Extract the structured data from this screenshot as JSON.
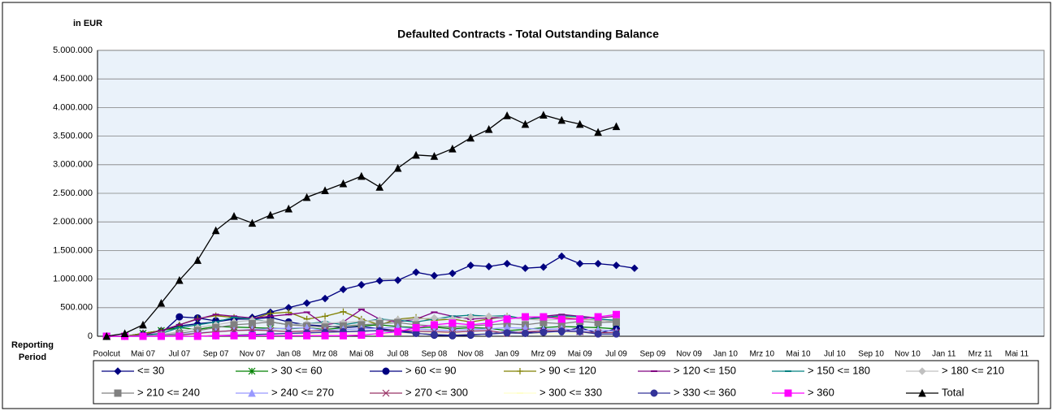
{
  "chart_data": {
    "type": "line",
    "title": "Defaulted Contracts - Total Outstanding Balance",
    "y_label": "in EUR",
    "x_label": "Reporting Period",
    "categories": [
      "Poolcut",
      null,
      "Mai 07",
      null,
      "Jul 07",
      null,
      "Sep 07",
      null,
      "Nov 07",
      null,
      "Jan 08",
      null,
      "Mrz 08",
      null,
      "Mai 08",
      null,
      "Jul 08",
      null,
      "Sep 08",
      null,
      "Nov 08",
      null,
      "Jan 09",
      null,
      "Mrz 09",
      null,
      "Mai 09",
      null,
      "Jul 09",
      null,
      "Sep 09",
      null,
      "Nov 09",
      null,
      "Jan 10",
      null,
      "Mrz 10",
      null,
      "Mai 10",
      null,
      "Jul 10",
      null,
      "Sep 10",
      null,
      "Nov 10",
      null,
      "Jan 11",
      null,
      "Mrz 11",
      null,
      "Mai 11",
      null
    ],
    "ylim": [
      0,
      5000000
    ],
    "yticks": [
      0,
      {
        "value": 500000,
        "label": "500.000"
      },
      {
        "value": 1000000,
        "label": "1.000.000"
      },
      {
        "value": 1500000,
        "label": "1.500.000"
      },
      {
        "value": 2000000,
        "label": "2.000.000"
      },
      {
        "value": 2500000,
        "label": "2.500.000"
      },
      {
        "value": 3000000,
        "label": "3.000.000"
      },
      {
        "value": 3500000,
        "label": "3.500.000"
      },
      {
        "value": 4000000,
        "label": "4.000.000"
      },
      {
        "value": 4500000,
        "label": "4.500.000"
      },
      {
        "value": 5000000,
        "label": "5.000.000"
      }
    ],
    "grid": true,
    "legend": "bottom",
    "series": [
      {
        "name": "<= 30",
        "color": "#000080",
        "marker": "diamond",
        "values": [
          0,
          0,
          50000,
          100000,
          180000,
          220000,
          250000,
          300000,
          330000,
          420000,
          500000,
          580000,
          660000,
          820000,
          900000,
          970000,
          980000,
          1120000,
          1060000,
          1100000,
          1240000,
          1220000,
          1270000,
          1190000,
          1210000,
          1400000,
          1270000,
          1270000,
          1240000,
          1190000,
          null,
          null,
          null,
          null,
          null,
          null,
          null,
          null,
          null,
          null,
          null,
          null,
          null,
          null,
          null,
          null,
          null,
          null,
          null,
          null,
          null,
          null
        ]
      },
      {
        "name": "> 30 <= 60",
        "color": "#008000",
        "marker": "star",
        "values": [
          0,
          0,
          50000,
          100000,
          150000,
          120000,
          170000,
          160000,
          150000,
          140000,
          130000,
          150000,
          120000,
          150000,
          180000,
          200000,
          170000,
          150000,
          160000,
          130000,
          150000,
          140000,
          100000,
          120000,
          150000,
          170000,
          160000,
          150000,
          130000,
          null,
          null,
          null,
          null,
          null,
          null,
          null,
          null,
          null,
          null,
          null,
          null,
          null,
          null,
          null,
          null,
          null,
          null,
          null,
          null,
          null,
          null,
          null
        ]
      },
      {
        "name": "> 60 <= 90",
        "color": "#000080",
        "marker": "circle",
        "values": [
          0,
          0,
          20000,
          50000,
          340000,
          320000,
          270000,
          300000,
          300000,
          330000,
          250000,
          200000,
          180000,
          150000,
          170000,
          130000,
          100000,
          60000,
          20000,
          10000,
          20000,
          50000,
          80000,
          60000,
          100000,
          80000,
          150000,
          50000,
          130000,
          null,
          null,
          null,
          null,
          null,
          null,
          null,
          null,
          null,
          null,
          null,
          null,
          null,
          null,
          null,
          null,
          null,
          null,
          null,
          null,
          null,
          null,
          null
        ]
      },
      {
        "name": "> 90 <= 120",
        "color": "#808000",
        "marker": "plus",
        "values": [
          0,
          0,
          50000,
          100000,
          200000,
          310000,
          360000,
          330000,
          300000,
          400000,
          420000,
          300000,
          350000,
          430000,
          300000,
          200000,
          300000,
          330000,
          280000,
          300000,
          250000,
          300000,
          350000,
          300000,
          320000,
          330000,
          300000,
          280000,
          260000,
          null,
          null,
          null,
          null,
          null,
          null,
          null,
          null,
          null,
          null,
          null,
          null,
          null,
          null,
          null,
          null,
          null,
          null,
          null,
          null,
          null,
          null,
          null
        ]
      },
      {
        "name": "> 120 <= 150",
        "color": "#800080",
        "marker": "dash",
        "values": [
          0,
          0,
          20000,
          100000,
          200000,
          300000,
          380000,
          350000,
          320000,
          350000,
          380000,
          420000,
          200000,
          250000,
          470000,
          300000,
          250000,
          300000,
          420000,
          350000,
          300000,
          320000,
          330000,
          300000,
          350000,
          380000,
          350000,
          320000,
          350000,
          null,
          null,
          null,
          null,
          null,
          null,
          null,
          null,
          null,
          null,
          null,
          null,
          null,
          null,
          null,
          null,
          null,
          null,
          null,
          null,
          null,
          null,
          null
        ]
      },
      {
        "name": "> 150 <= 180",
        "color": "#008080",
        "marker": "dash",
        "values": [
          0,
          0,
          10000,
          50000,
          150000,
          200000,
          250000,
          330000,
          300000,
          250000,
          200000,
          220000,
          250000,
          200000,
          250000,
          300000,
          280000,
          250000,
          300000,
          350000,
          370000,
          350000,
          360000,
          300000,
          330000,
          360000,
          340000,
          300000,
          280000,
          null,
          null,
          null,
          null,
          null,
          null,
          null,
          null,
          null,
          null,
          null,
          null,
          null,
          null,
          null,
          null,
          null,
          null,
          null,
          null,
          null,
          null,
          null
        ]
      },
      {
        "name": "> 180 <= 210",
        "color": "#c0c0c0",
        "marker": "diamond",
        "values": [
          0,
          0,
          0,
          30000,
          80000,
          150000,
          200000,
          250000,
          280000,
          260000,
          200000,
          220000,
          230000,
          240000,
          260000,
          280000,
          290000,
          300000,
          320000,
          300000,
          340000,
          350000,
          330000,
          300000,
          280000,
          300000,
          290000,
          280000,
          260000,
          null,
          null,
          null,
          null,
          null,
          null,
          null,
          null,
          null,
          null,
          null,
          null,
          null,
          null,
          null,
          null,
          null,
          null,
          null,
          null,
          null,
          null,
          null
        ]
      },
      {
        "name": "> 210 <= 240",
        "color": "#808080",
        "marker": "square",
        "values": [
          0,
          0,
          0,
          20000,
          50000,
          100000,
          150000,
          200000,
          220000,
          250000,
          200000,
          180000,
          160000,
          180000,
          200000,
          220000,
          240000,
          200000,
          180000,
          160000,
          180000,
          200000,
          220000,
          200000,
          240000,
          220000,
          260000,
          240000,
          250000,
          null,
          null,
          null,
          null,
          null,
          null,
          null,
          null,
          null,
          null,
          null,
          null,
          null,
          null,
          null,
          null,
          null,
          null,
          null,
          null,
          null,
          null,
          null
        ]
      },
      {
        "name": "> 240 <= 270",
        "color": "#9999ff",
        "marker": "triangle",
        "values": [
          0,
          0,
          0,
          10000,
          30000,
          60000,
          80000,
          100000,
          120000,
          130000,
          140000,
          150000,
          100000,
          120000,
          130000,
          140000,
          160000,
          130000,
          110000,
          100000,
          120000,
          130000,
          150000,
          140000,
          120000,
          130000,
          100000,
          110000,
          90000,
          null,
          null,
          null,
          null,
          null,
          null,
          null,
          null,
          null,
          null,
          null,
          null,
          null,
          null,
          null,
          null,
          null,
          null,
          null,
          null,
          null,
          null,
          null
        ]
      },
      {
        "name": "> 270 <= 300",
        "color": "#993366",
        "marker": "cross",
        "values": [
          0,
          0,
          0,
          5000,
          20000,
          50000,
          80000,
          100000,
          110000,
          100000,
          80000,
          90000,
          100000,
          80000,
          90000,
          100000,
          110000,
          90000,
          80000,
          70000,
          90000,
          100000,
          50000,
          80000,
          90000,
          100000,
          80000,
          60000,
          70000,
          null,
          null,
          null,
          null,
          null,
          null,
          null,
          null,
          null,
          null,
          null,
          null,
          null,
          null,
          null,
          null,
          null,
          null,
          null,
          null,
          null,
          null,
          null
        ]
      },
      {
        "name": "> 300 <= 330",
        "color": "#ffffcc",
        "marker": "dash",
        "values": [
          0,
          0,
          0,
          0,
          5000,
          10000,
          20000,
          30000,
          40000,
          30000,
          20000,
          30000,
          40000,
          50000,
          40000,
          30000,
          40000,
          50000,
          60000,
          50000,
          40000,
          50000,
          60000,
          50000,
          40000,
          50000,
          60000,
          50000,
          40000,
          null,
          null,
          null,
          null,
          null,
          null,
          null,
          null,
          null,
          null,
          null,
          null,
          null,
          null,
          null,
          null,
          null,
          null,
          null,
          null,
          null,
          null,
          null
        ]
      },
      {
        "name": "> 330 <= 360",
        "color": "#333399",
        "marker": "circle",
        "values": [
          0,
          0,
          0,
          0,
          0,
          0,
          10000,
          20000,
          30000,
          40000,
          50000,
          60000,
          70000,
          80000,
          90000,
          100000,
          80000,
          50000,
          30000,
          20000,
          30000,
          40000,
          60000,
          50000,
          70000,
          90000,
          80000,
          40000,
          40000,
          null,
          null,
          null,
          null,
          null,
          null,
          null,
          null,
          null,
          null,
          null,
          null,
          null,
          null,
          null,
          null,
          null,
          null,
          null,
          null,
          null,
          null,
          null
        ]
      },
      {
        "name": "> 360",
        "color": "#ff00ff",
        "marker": "square",
        "values": [
          0,
          0,
          0,
          0,
          0,
          0,
          10000,
          10000,
          10000,
          10000,
          10000,
          10000,
          10000,
          10000,
          20000,
          50000,
          80000,
          150000,
          200000,
          230000,
          200000,
          230000,
          300000,
          340000,
          340000,
          300000,
          300000,
          340000,
          380000,
          null,
          null,
          null,
          null,
          null,
          null,
          null,
          null,
          null,
          null,
          null,
          null,
          null,
          null,
          null,
          null,
          null,
          null,
          null,
          null,
          null,
          null,
          null
        ]
      },
      {
        "name": "Total",
        "color": "#000000",
        "marker": "triangle",
        "values": [
          0,
          50000,
          200000,
          580000,
          980000,
          1330000,
          1850000,
          2100000,
          1980000,
          2120000,
          2230000,
          2430000,
          2550000,
          2670000,
          2800000,
          2610000,
          2940000,
          3170000,
          3150000,
          3280000,
          3470000,
          3620000,
          3860000,
          3710000,
          3870000,
          3780000,
          3710000,
          3570000,
          3670000,
          null,
          null,
          null,
          null,
          null,
          null,
          null,
          null,
          null,
          null,
          null,
          null,
          null,
          null,
          null,
          null,
          null,
          null,
          null,
          null,
          null,
          null,
          null
        ]
      }
    ]
  }
}
